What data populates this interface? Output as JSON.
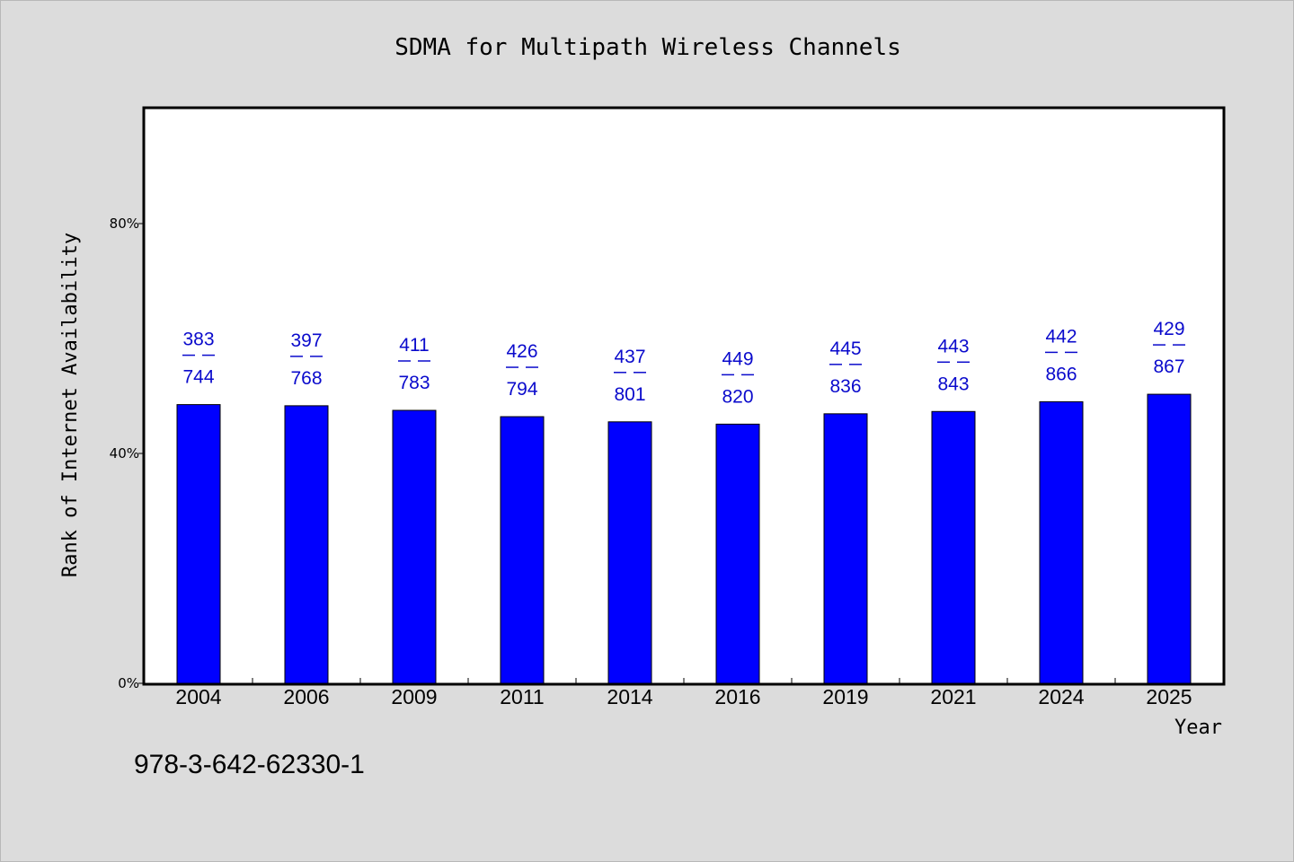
{
  "chart_data": {
    "type": "bar",
    "title": "SDMA for Multipath Wireless Channels",
    "xlabel": "Year",
    "ylabel": "Rank of Internet Availability",
    "ylim": [
      0,
      100
    ],
    "yticks": [
      {
        "value": 0,
        "label": "0%"
      },
      {
        "value": 40,
        "label": "40%"
      },
      {
        "value": 80,
        "label": "80%"
      }
    ],
    "categories": [
      "2004",
      "2006",
      "2009",
      "2011",
      "2014",
      "2016",
      "2019",
      "2021",
      "2024",
      "2025"
    ],
    "values": [
      48.5,
      48.3,
      47.5,
      46.4,
      45.5,
      45.1,
      46.9,
      47.3,
      49.0,
      50.3
    ],
    "labels_top": [
      "383",
      "397",
      "411",
      "426",
      "437",
      "449",
      "445",
      "443",
      "442",
      "429"
    ],
    "labels_bottom": [
      "744",
      "768",
      "783",
      "794",
      "801",
      "820",
      "836",
      "843",
      "866",
      "867"
    ],
    "grid": false,
    "colors": {
      "bar": "#0000ff",
      "label": "#0a0acc",
      "background": "#dcdcdc",
      "plot": "#ffffff"
    }
  },
  "footer": {
    "isbn": "978-3-642-62330-1"
  }
}
